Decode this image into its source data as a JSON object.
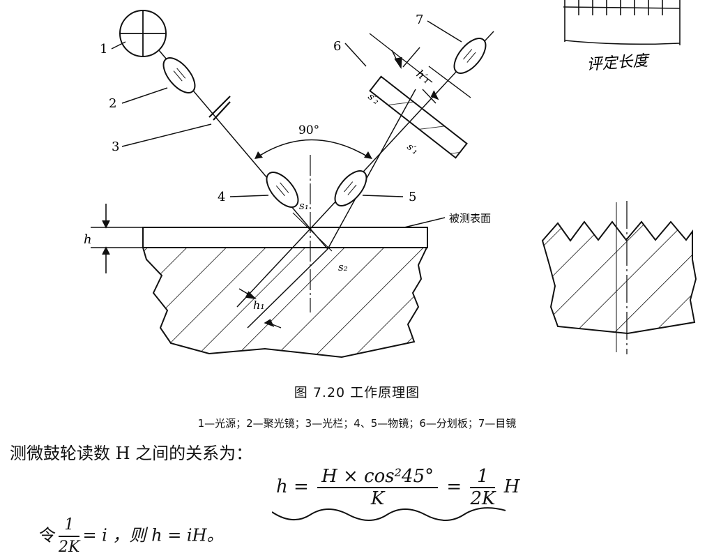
{
  "figure": {
    "labels": {
      "n1": "1",
      "n2": "2",
      "n3": "3",
      "n4": "4",
      "n5": "5",
      "n6": "6",
      "n7": "7",
      "angle": "90°",
      "h": "h",
      "h1": "h₁",
      "h1_prime": "h′₁",
      "s1": "s₁",
      "s2": "s₂",
      "s1_prime": "s′₁",
      "s2_prime": "s′₂",
      "surface": "被测表面",
      "handwritten_note": "评定长度"
    }
  },
  "caption": {
    "title": "图 7.20   工作原理图",
    "legend": "1—光源；2—聚光镜；3—光栏；4、5—物镜；6—分划板；7—目镜"
  },
  "text": {
    "relation_intro": "测微鼓轮读数 H 之间的关系为：",
    "formula_lhs": "h =",
    "formula_num": "H × cos²45°",
    "formula_den": "K",
    "formula_eq2": "=",
    "formula_frac2_num": "1",
    "formula_frac2_den": "2K",
    "formula_tail": "H",
    "let_prefix": "令",
    "let_num": "1",
    "let_den": "2K",
    "let_rest": "= i ，则 h = iH。"
  }
}
